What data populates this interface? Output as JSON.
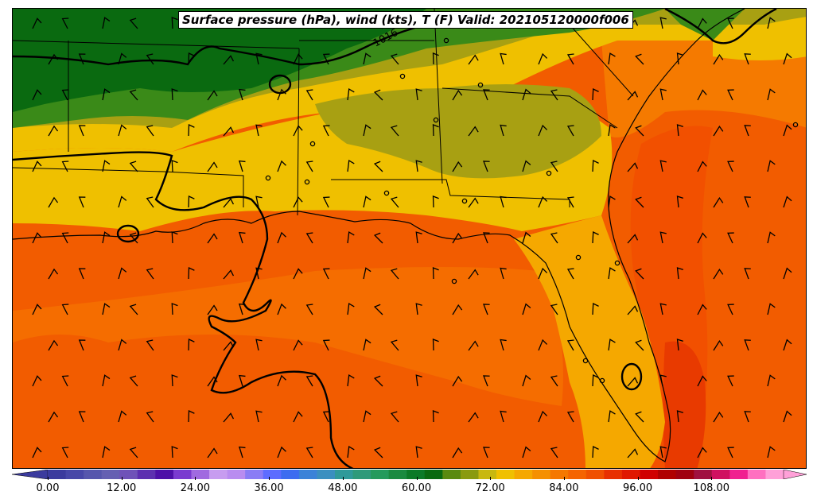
{
  "title": "Surface pressure (hPa), wind (kts), T (F) Valid: 202105120000f006",
  "isobar_label": "1016",
  "colorbar": {
    "ticks": [
      "0.00",
      "12.00",
      "24.00",
      "36.00",
      "48.00",
      "60.00",
      "72.00",
      "84.00",
      "96.00",
      "108.00"
    ],
    "colors": [
      "#3b3b9e",
      "#4747a8",
      "#5656ad",
      "#6560b2",
      "#6f52b8",
      "#5d2fb0",
      "#4d0fa8",
      "#7a3ad0",
      "#a06ae0",
      "#c79cf0",
      "#b98cf0",
      "#8a7cf5",
      "#5d6cff",
      "#3d6cf0",
      "#3a82d8",
      "#3a8fc0",
      "#2f9a9a",
      "#2e9a7a",
      "#249a5c",
      "#1a8a40",
      "#0c7a28",
      "#0a6a10",
      "#5a8a10",
      "#8a9a10",
      "#c8b810",
      "#f0c000",
      "#f5a800",
      "#f59000",
      "#f57800",
      "#f56400",
      "#f05000",
      "#e83000",
      "#e01800",
      "#d00000",
      "#b00000",
      "#a00010",
      "#a01040",
      "#d01060",
      "#f02090",
      "#ff70c0",
      "#ffa0d8"
    ]
  },
  "fields": {
    "green_dark": "#0a6a10",
    "green": "#3a8a18",
    "olive": "#8a9a10",
    "olive_light": "#a8a012",
    "yellow": "#efc000",
    "orange_light": "#f5a800",
    "orange": "#f57c00",
    "orange_red": "#f25c00",
    "red_orange": "#e83a00"
  }
}
